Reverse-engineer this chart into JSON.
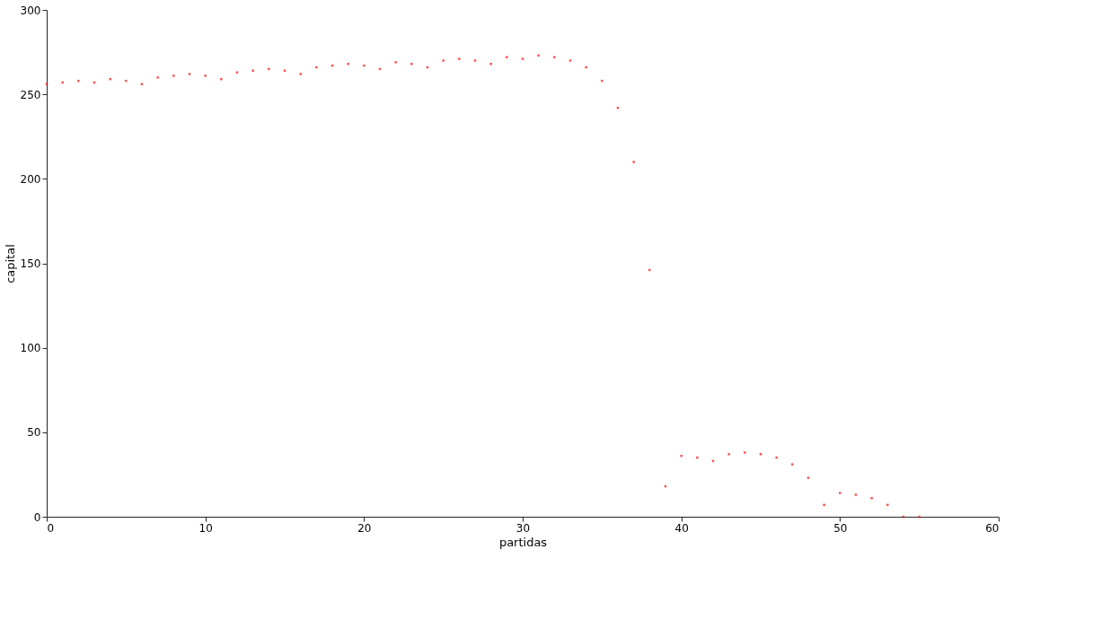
{
  "chart_data": {
    "type": "scatter",
    "xlabel": "partidas",
    "ylabel": "capital",
    "x": [
      0,
      1,
      2,
      3,
      4,
      5,
      6,
      7,
      8,
      9,
      10,
      11,
      12,
      13,
      14,
      15,
      16,
      17,
      18,
      19,
      20,
      21,
      22,
      23,
      24,
      25,
      26,
      27,
      28,
      29,
      30,
      31,
      32,
      33,
      34,
      35,
      36,
      37,
      38,
      39,
      40,
      41,
      42,
      43,
      44,
      45,
      46,
      47,
      48,
      49,
      50,
      51,
      52,
      53,
      54,
      55
    ],
    "series": [
      {
        "color": "#ff0000",
        "values": [
          256,
          257,
          258,
          257,
          259,
          258,
          256,
          260,
          261,
          262,
          261,
          259,
          263,
          264,
          265,
          264,
          262,
          266,
          267,
          268,
          267,
          265,
          269,
          268,
          266,
          270,
          271,
          270,
          268,
          272,
          271,
          273,
          272,
          270,
          266,
          258,
          242,
          210,
          146,
          18,
          36,
          35,
          33,
          37,
          38,
          37,
          35,
          31,
          23,
          7,
          14,
          13,
          11,
          7,
          0,
          0
        ]
      }
    ],
    "xlim": [
      0,
      60
    ],
    "xticks": [
      0,
      10,
      20,
      30,
      40,
      50,
      60
    ],
    "ylim": [
      0,
      300
    ],
    "yticks": [
      0,
      50,
      100,
      150,
      200,
      250,
      300
    ],
    "grid": false,
    "legend": false,
    "marker": "square"
  }
}
